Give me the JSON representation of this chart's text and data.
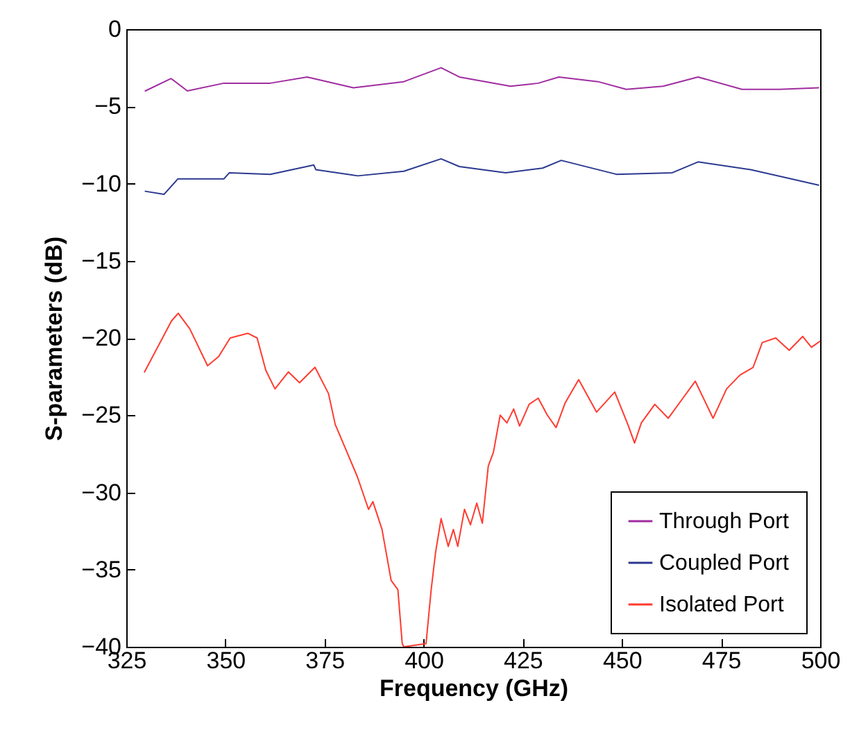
{
  "chart_data": {
    "type": "line",
    "xlabel": "Frequency (GHz)",
    "ylabel": "S-parameters (dB)",
    "xlim": [
      325,
      500
    ],
    "ylim": [
      -40,
      0
    ],
    "xticks": [
      325,
      350,
      375,
      400,
      425,
      450,
      475,
      500
    ],
    "yticks": [
      -40,
      -35,
      -30,
      -25,
      -20,
      -15,
      -10,
      -5,
      0
    ],
    "grid": false,
    "legend": "bottom right",
    "line_style": "solid",
    "marker": "none",
    "series": [
      {
        "name": "Through Port",
        "color": "#a02ca0",
        "x": [
          329.8,
          336.3,
          340.4,
          349.6,
          361.3,
          370.6,
          382.3,
          395,
          404.4,
          409,
          421.9,
          428.9,
          434.1,
          444,
          451.1,
          460.4,
          469.2,
          480.3,
          489.7,
          499.6
        ],
        "values": [
          -4.0,
          -3.2,
          -4.0,
          -3.5,
          -3.5,
          -3.1,
          -3.8,
          -3.4,
          -2.5,
          -3.1,
          -3.7,
          -3.5,
          -3.1,
          -3.4,
          -3.9,
          -3.7,
          -3.1,
          -3.9,
          -3.9,
          -3.8
        ]
      },
      {
        "name": "Coupled Port",
        "color": "#2b3990",
        "x": [
          329.8,
          334.5,
          338,
          349.6,
          351,
          361.3,
          372.3,
          372.8,
          383.4,
          395,
          404.4,
          409,
          420.7,
          430,
          434.7,
          448.6,
          462.7,
          469.2,
          482.5,
          499.6
        ],
        "values": [
          -10.5,
          -10.7,
          -9.7,
          -9.7,
          -9.3,
          -9.4,
          -8.8,
          -9.1,
          -9.5,
          -9.2,
          -8.4,
          -8.9,
          -9.3,
          -9.0,
          -8.5,
          -9.4,
          -9.3,
          -8.6,
          -9.1,
          -10.1
        ]
      },
      {
        "name": "Isolated Port",
        "color": "#ff3b30",
        "x": [
          329.6,
          336.4,
          338.1,
          341,
          345.5,
          348.3,
          351.2,
          355.7,
          358,
          360.2,
          362.5,
          365.9,
          368.7,
          372.6,
          376,
          377.7,
          380.5,
          383.3,
          386.1,
          387.2,
          389.5,
          391.8,
          393.5,
          394.6,
          395,
          400.6,
          401.9,
          403,
          404.4,
          406.2,
          407.5,
          408.6,
          410.3,
          411.8,
          413.4,
          414.8,
          416.3,
          417.6,
          419.3,
          421,
          422.7,
          424.2,
          426.6,
          428.9,
          431.2,
          433.4,
          435.7,
          439.1,
          443.6,
          448.2,
          451.5,
          453.2,
          454.9,
          458.3,
          461.7,
          465.1,
          468.5,
          473,
          476.4,
          479.8,
          483.1,
          485.4,
          488.8,
          492.2,
          495.6,
          497.8,
          500
        ],
        "values": [
          -22.2,
          -18.9,
          -18.4,
          -19.4,
          -21.8,
          -21.2,
          -20.0,
          -19.7,
          -20.0,
          -22.1,
          -23.3,
          -22.2,
          -22.9,
          -21.9,
          -23.6,
          -25.6,
          -27.3,
          -29.0,
          -31.1,
          -30.6,
          -32.4,
          -35.7,
          -36.3,
          -39.8,
          -40,
          -39.8,
          -36.3,
          -33.9,
          -31.7,
          -33.5,
          -32.4,
          -33.5,
          -31.1,
          -32.1,
          -30.7,
          -32.0,
          -28.3,
          -27.4,
          -25.0,
          -25.5,
          -24.6,
          -25.7,
          -24.3,
          -23.9,
          -25.0,
          -25.8,
          -24.2,
          -22.7,
          -24.8,
          -23.5,
          -25.6,
          -26.8,
          -25.5,
          -24.3,
          -25.2,
          -24.0,
          -22.8,
          -25.2,
          -23.3,
          -22.4,
          -21.9,
          -20.3,
          -20.0,
          -20.8,
          -19.9,
          -20.6,
          -20.2
        ]
      }
    ]
  }
}
